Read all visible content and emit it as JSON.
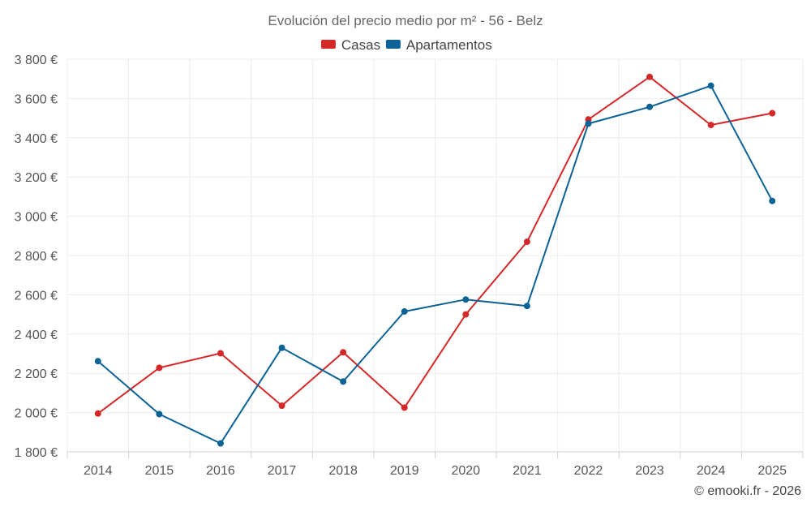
{
  "chart_data": {
    "type": "line",
    "title": "Evolución del precio medio por m² - 56 - Belz",
    "categories": [
      "2014",
      "2015",
      "2016",
      "2017",
      "2018",
      "2019",
      "2020",
      "2021",
      "2022",
      "2023",
      "2024",
      "2025"
    ],
    "series": [
      {
        "name": "Casas",
        "color": "#d42828",
        "values": [
          1995,
          2228,
          2302,
          2035,
          2307,
          2025,
          2500,
          2870,
          3493,
          3710,
          3465,
          3525
        ]
      },
      {
        "name": "Apartamentos",
        "color": "#0b6296",
        "values": [
          2262,
          1992,
          1843,
          2330,
          2158,
          2515,
          2576,
          2543,
          3472,
          3557,
          3665,
          3078
        ]
      }
    ],
    "y_ticks": [
      1800,
      2000,
      2200,
      2400,
      2600,
      2800,
      3000,
      3200,
      3400,
      3600,
      3800
    ],
    "y_tick_labels": [
      "1 800 €",
      "2 000 €",
      "2 200 €",
      "2 400 €",
      "2 600 €",
      "2 800 €",
      "3 000 €",
      "3 200 €",
      "3 400 €",
      "3 600 €",
      "3 800 €"
    ],
    "ylim": [
      1800,
      3800
    ],
    "xlabel": "",
    "ylabel": "",
    "grid": true,
    "legend_position": "top-center"
  },
  "credit": "© emooki.fr - 2026"
}
